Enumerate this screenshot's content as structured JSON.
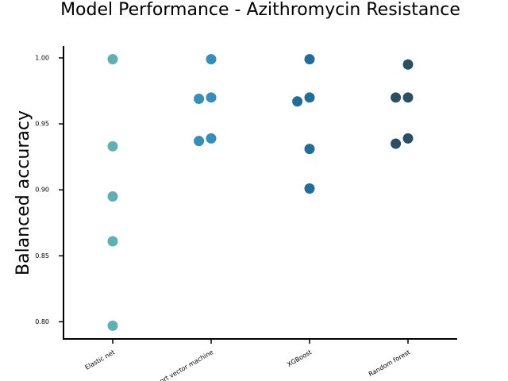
{
  "chart_data": {
    "type": "strip",
    "title": "Model Performance - Azithromycin Resistance",
    "y_label": "Balanced accuracy",
    "categories": [
      "Elastic net",
      "Support vector machine",
      "XGBoost",
      "Random forest"
    ],
    "colors": [
      "#5fb0b2",
      "#358eb8",
      "#206c9a",
      "#2a4e62"
    ],
    "values": [
      [
        0.999,
        0.933,
        0.895,
        0.861,
        0.797
      ],
      [
        0.999,
        0.97,
        0.969,
        0.939,
        0.937
      ],
      [
        0.999,
        0.97,
        0.967,
        0.931,
        0.901
      ],
      [
        0.995,
        0.97,
        0.97,
        0.939,
        0.935
      ]
    ],
    "ylim": [
      0.787,
      1.009
    ],
    "yticks": [
      {
        "value": 0.8,
        "label": "0.80"
      },
      {
        "value": 0.85,
        "label": "0.85"
      },
      {
        "value": 0.9,
        "label": "0.90"
      },
      {
        "value": 0.95,
        "label": "0.95"
      },
      {
        "value": 1.0,
        "label": "1.00"
      }
    ]
  }
}
